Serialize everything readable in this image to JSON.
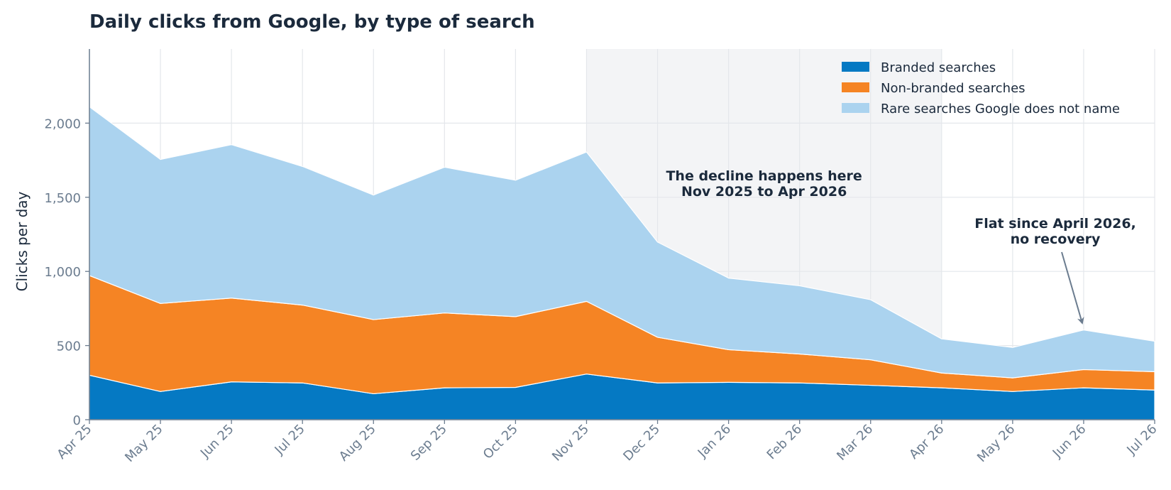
{
  "chart_data": {
    "type": "area",
    "stacked": true,
    "title": "Daily clicks from Google, by type of search",
    "ylabel": "Clicks per day",
    "xlabel": "",
    "x": [
      "Apr 25",
      "May 25",
      "Jun 25",
      "Jul 25",
      "Aug 25",
      "Sep 25",
      "Oct 25",
      "Nov 25",
      "Dec 25",
      "Jan 26",
      "Feb 26",
      "Mar 26",
      "Apr 26",
      "May 26",
      "Jun 26",
      "Jul 26"
    ],
    "ylim": [
      0,
      2500
    ],
    "yticks": [
      0,
      500,
      1000,
      1500,
      2000
    ],
    "ytick_labels": [
      "0",
      "500",
      "1,000",
      "1,500",
      "2,000"
    ],
    "grid": true,
    "legend_position": "top-right",
    "series": [
      {
        "name": "Branded searches",
        "color": "#0579c3",
        "values": [
          300,
          190,
          255,
          248,
          175,
          215,
          218,
          308,
          248,
          252,
          248,
          232,
          215,
          190,
          215,
          200
        ]
      },
      {
        "name": "Non-branded searches",
        "color": "#f58424",
        "values": [
          672,
          594,
          565,
          525,
          500,
          505,
          477,
          490,
          308,
          220,
          195,
          172,
          100,
          92,
          123,
          124
        ]
      },
      {
        "name": "Rare searches Google does not name",
        "color": "#abd3ef",
        "values": [
          1138,
          971,
          1035,
          935,
          840,
          983,
          920,
          1007,
          642,
          483,
          460,
          405,
          230,
          205,
          267,
          205
        ]
      }
    ],
    "shaded_region": {
      "from": "Nov 25",
      "to": "Apr 26",
      "color": "#f3f4f6"
    },
    "annotations": [
      {
        "lines": [
          "The decline happens here",
          "Nov 2025 to Apr 2026"
        ]
      },
      {
        "lines": [
          "Flat since April 2026,",
          "no recovery"
        ],
        "arrow_to": {
          "x": "Jun 26"
        }
      }
    ]
  }
}
